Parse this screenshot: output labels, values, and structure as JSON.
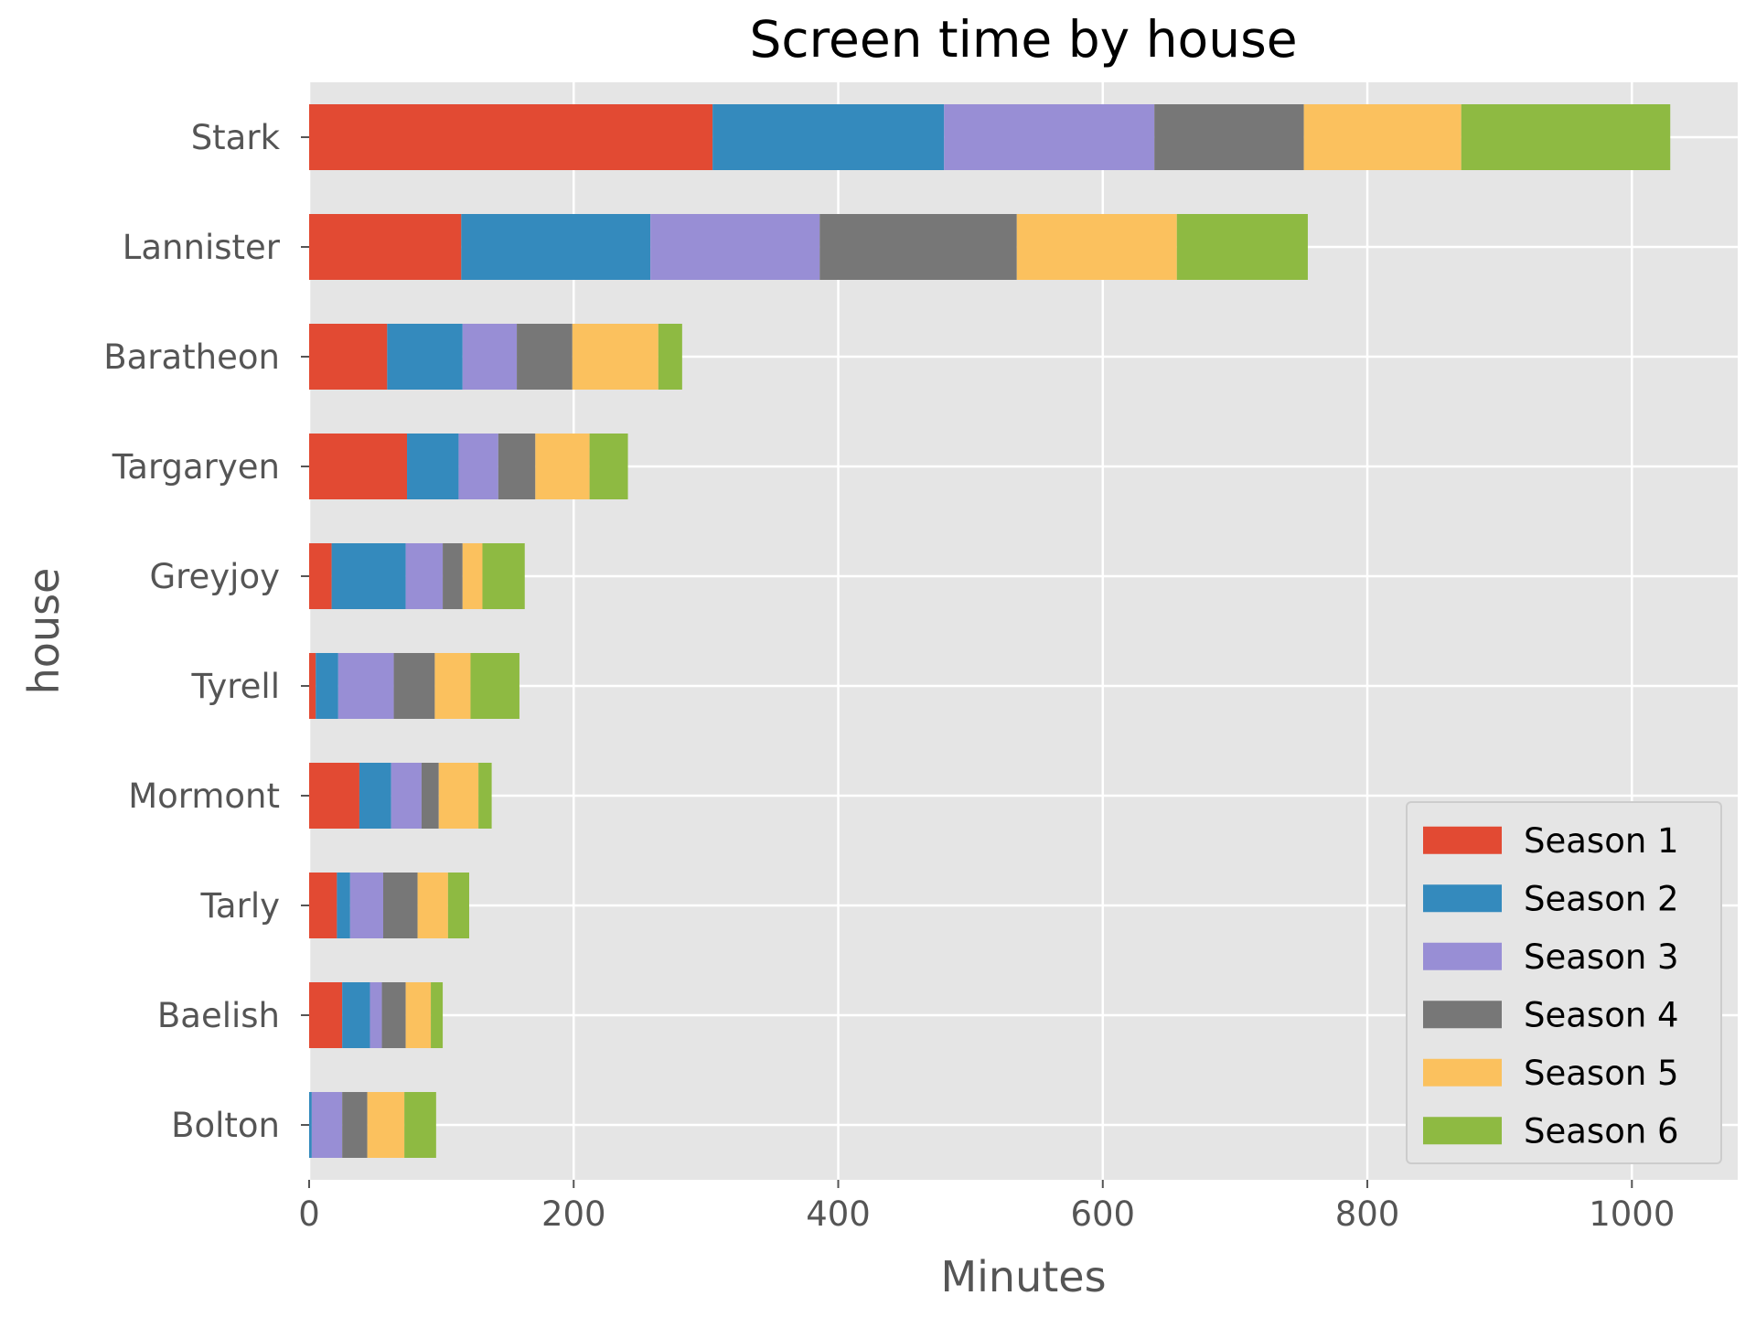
{
  "chart_data": {
    "type": "bar",
    "orientation": "horizontal",
    "stacked": true,
    "title": "Screen time by house",
    "xlabel": "Minutes",
    "ylabel": "house",
    "xlim": [
      0,
      1080
    ],
    "xticks": [
      0,
      200,
      400,
      600,
      800,
      1000
    ],
    "xtick_labels": [
      "0",
      "200",
      "400",
      "600",
      "800",
      "1000"
    ],
    "grid": true,
    "legend_position": "lower-right",
    "categories": [
      "Stark",
      "Lannister",
      "Baratheon",
      "Targaryen",
      "Greyjoy",
      "Tyrell",
      "Mormont",
      "Tarly",
      "Baelish",
      "Bolton"
    ],
    "series": [
      {
        "name": "Season 1",
        "color": "#E24A33",
        "values": [
          305,
          115,
          59,
          74,
          17,
          5,
          38,
          21,
          25,
          0
        ]
      },
      {
        "name": "Season 2",
        "color": "#348ABD",
        "values": [
          175,
          143,
          57,
          39,
          56,
          17,
          24,
          10,
          21,
          2
        ]
      },
      {
        "name": "Season 3",
        "color": "#988ED5",
        "values": [
          159,
          128,
          41,
          30,
          28,
          42,
          23,
          25,
          9,
          23
        ]
      },
      {
        "name": "Season 4",
        "color": "#777777",
        "values": [
          113,
          149,
          42,
          28,
          15,
          31,
          13,
          26,
          18,
          19
        ]
      },
      {
        "name": "Season 5",
        "color": "#FBC15E",
        "values": [
          119,
          121,
          65,
          41,
          15,
          27,
          30,
          23,
          19,
          28
        ]
      },
      {
        "name": "Season 6",
        "color": "#8EBA42",
        "values": [
          158,
          99,
          18,
          29,
          32,
          37,
          10,
          16,
          9,
          24
        ]
      }
    ]
  }
}
